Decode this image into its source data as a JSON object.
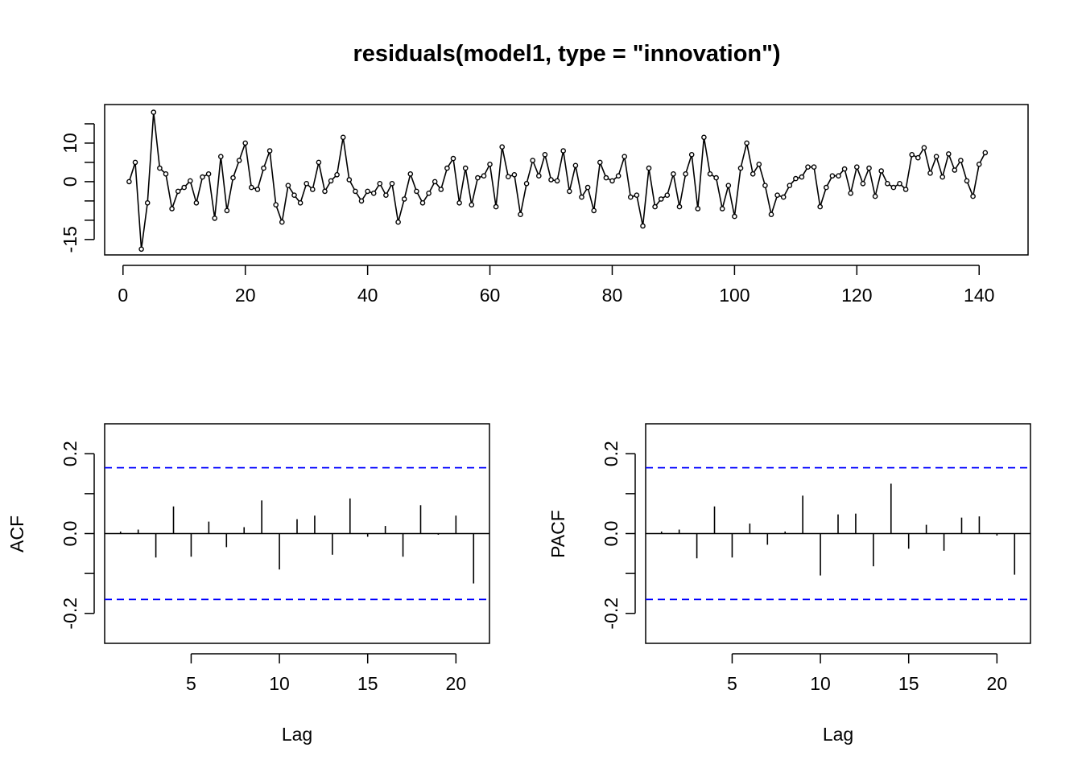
{
  "chart_data": [
    {
      "type": "line",
      "title": "residuals(model1, type = \"innovation\")",
      "xlabel": "",
      "ylabel": "",
      "xlim": [
        -3,
        148
      ],
      "ylim": [
        -19,
        20
      ],
      "x_ticks": [
        0,
        20,
        40,
        60,
        80,
        100,
        120,
        140
      ],
      "y_ticks": [
        -15,
        -10,
        -5,
        0,
        5,
        10,
        15
      ],
      "y_tick_labels": [
        "-15",
        "",
        "",
        "0",
        "",
        "10",
        ""
      ],
      "markers": "open-circle",
      "series": [
        {
          "x_start": 1,
          "values": [
            0,
            5,
            -17.5,
            -5.5,
            18,
            3.5,
            2,
            -7,
            -2.5,
            -1.5,
            0.2,
            -5.5,
            1.2,
            2,
            -9.5,
            6.5,
            -7.5,
            1,
            5.5,
            10,
            -1.5,
            -2,
            3.5,
            8,
            -6,
            -10.5,
            -1,
            -3.5,
            -5.5,
            -0.5,
            -2,
            5,
            -2.5,
            0.2,
            1.8,
            11.5,
            0.5,
            -2.5,
            -5,
            -2.5,
            -3,
            -0.5,
            -3.5,
            -0.5,
            -10.5,
            -4.5,
            2,
            -2.5,
            -5.5,
            -3,
            0,
            -2,
            3.5,
            6,
            -5.5,
            3.5,
            -6,
            1,
            1.5,
            4.5,
            -6.5,
            9,
            1.3,
            1.8,
            -8.5,
            -0.5,
            5.5,
            1.5,
            7,
            0.5,
            0.2,
            8,
            -2.5,
            4.2,
            -4,
            -1.5,
            -7.5,
            5,
            1,
            0.2,
            1.5,
            6.5,
            -4,
            -3.5,
            -11.5,
            3.5,
            -6.5,
            -4.5,
            -3.5,
            2,
            -6.5,
            2,
            7,
            -7,
            11.5,
            2,
            1,
            -7,
            -1,
            -9,
            3.5,
            10,
            2,
            4.5,
            -1,
            -8.5,
            -3.5,
            -4,
            -1,
            0.8,
            1.2,
            3.8,
            3.8,
            -6.5,
            -1.5,
            1.5,
            1.5,
            3.3,
            -3,
            3.8,
            -0.5,
            3.5,
            -3.8,
            2.8,
            -0.5,
            -1.5,
            -0.5,
            -2,
            7,
            6.2,
            8.8,
            2.2,
            6.5,
            1.2,
            7.2,
            3,
            5.5,
            0.2,
            -3.8,
            4.5,
            7.5
          ]
        }
      ]
    },
    {
      "type": "bar",
      "title": "",
      "xlabel": "Lag",
      "ylabel": "ACF",
      "xlim": [
        0.1,
        21.9
      ],
      "ylim": [
        -0.275,
        0.275
      ],
      "x_ticks": [
        5,
        10,
        15,
        20
      ],
      "y_ticks": [
        -0.2,
        -0.1,
        0.0,
        0.1,
        0.2
      ],
      "y_tick_labels": [
        "-0.2",
        "",
        "0.0",
        "",
        "0.2"
      ],
      "confidence_bounds": [
        -0.165,
        0.165
      ],
      "lags": [
        1,
        2,
        3,
        4,
        5,
        6,
        7,
        8,
        9,
        10,
        11,
        12,
        13,
        14,
        15,
        16,
        17,
        18,
        19,
        20,
        21
      ],
      "values": [
        0.005,
        0.01,
        -0.06,
        0.068,
        -0.058,
        0.03,
        -0.034,
        0.016,
        0.083,
        -0.09,
        0.036,
        0.045,
        -0.053,
        0.088,
        -0.008,
        0.019,
        -0.058,
        0.071,
        -0.003,
        0.045,
        -0.125
      ],
      "colors": {
        "bounds": "#0000ff",
        "bars": "#000000"
      }
    },
    {
      "type": "bar",
      "title": "",
      "xlabel": "Lag",
      "ylabel": "PACF",
      "xlim": [
        0.1,
        21.9
      ],
      "ylim": [
        -0.275,
        0.275
      ],
      "x_ticks": [
        5,
        10,
        15,
        20
      ],
      "y_ticks": [
        -0.2,
        -0.1,
        0.0,
        0.1,
        0.2
      ],
      "y_tick_labels": [
        "-0.2",
        "",
        "0.0",
        "",
        "0.2"
      ],
      "confidence_bounds": [
        -0.165,
        0.165
      ],
      "lags": [
        1,
        2,
        3,
        4,
        5,
        6,
        7,
        8,
        9,
        10,
        11,
        12,
        13,
        14,
        15,
        16,
        17,
        18,
        19,
        20,
        21
      ],
      "values": [
        0.005,
        0.01,
        -0.062,
        0.068,
        -0.06,
        0.025,
        -0.028,
        0.005,
        0.095,
        -0.105,
        0.048,
        0.05,
        -0.082,
        0.125,
        -0.038,
        0.022,
        -0.043,
        0.04,
        0.043,
        -0.005,
        -0.103
      ],
      "colors": {
        "bounds": "#0000ff",
        "bars": "#000000"
      }
    }
  ]
}
